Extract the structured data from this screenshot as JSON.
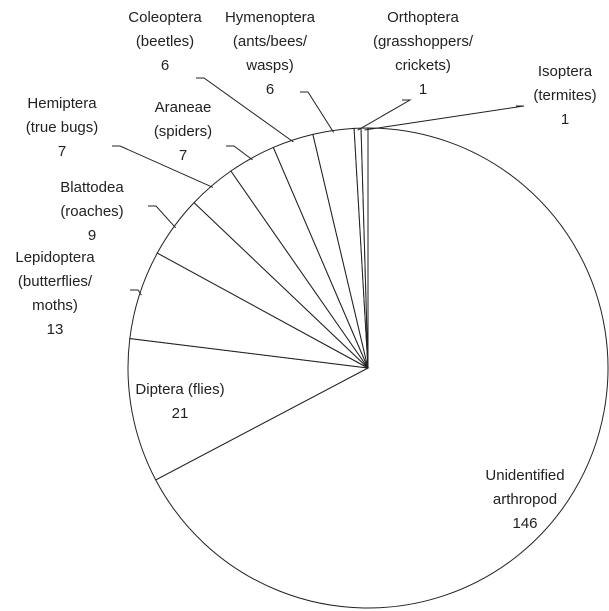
{
  "chart_data": {
    "type": "pie",
    "categories": [
      [
        "Unidentified",
        "arthropod"
      ],
      [
        "Diptera (flies)"
      ],
      [
        "Lepidoptera",
        "(butterflies/",
        "moths)"
      ],
      [
        "Blattodea",
        "(roaches)"
      ],
      [
        "Hemiptera",
        "(true bugs)"
      ],
      [
        "Araneae",
        "(spiders)"
      ],
      [
        "Coleoptera",
        "(beetles)"
      ],
      [
        "Hymenoptera",
        "(ants/bees/",
        "wasps)"
      ],
      [
        "Orthoptera",
        "(grasshoppers/",
        "crickets)"
      ],
      [
        "Isoptera",
        "(termites)"
      ]
    ],
    "values": [
      146,
      21,
      13,
      9,
      7,
      7,
      6,
      6,
      1,
      1
    ]
  }
}
